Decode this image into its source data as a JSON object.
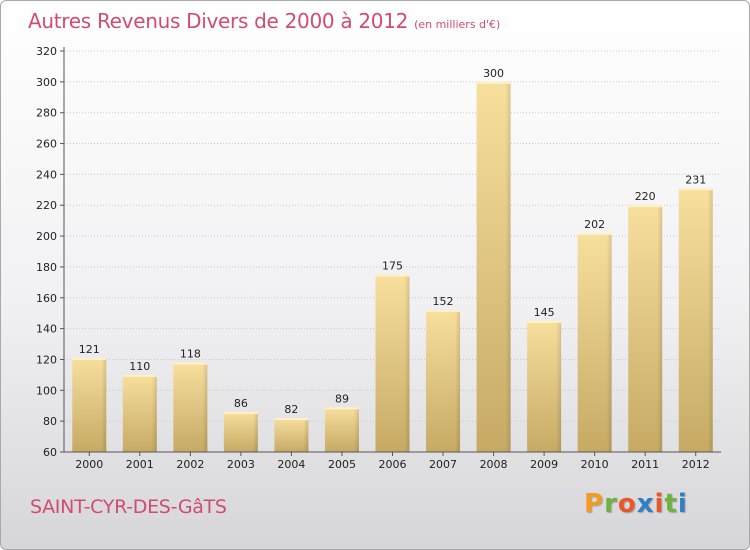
{
  "header": {
    "title": "Autres Revenus Divers de 2000 à 2012",
    "subtitle": "(en milliers d'€)"
  },
  "footer": {
    "city": "SAINT-CYR-DES-GâTS",
    "logo": "Proxiti"
  },
  "colors": {
    "title": "#d24b70",
    "bar_light": "#f5dc9a",
    "bar_dark": "#c4a862",
    "logo_letters": [
      "#f29b1f",
      "#6fb33d",
      "#e8582a",
      "#2f7fc2",
      "#e8582a",
      "#6fb33d",
      "#2f7fc2"
    ]
  },
  "chart_data": {
    "type": "bar",
    "title": "Autres Revenus Divers de 2000 à 2012",
    "subtitle": "(en milliers d'€)",
    "categories": [
      "2000",
      "2001",
      "2002",
      "2003",
      "2004",
      "2005",
      "2006",
      "2007",
      "2008",
      "2009",
      "2010",
      "2011",
      "2012"
    ],
    "values": [
      121,
      110,
      118,
      86,
      82,
      89,
      175,
      152,
      300,
      145,
      202,
      220,
      231
    ],
    "ylim": [
      60,
      320
    ],
    "yticks": [
      60,
      80,
      100,
      120,
      140,
      160,
      180,
      200,
      220,
      240,
      260,
      280,
      300,
      320
    ],
    "grid": true,
    "xlabel": "",
    "ylabel": ""
  }
}
